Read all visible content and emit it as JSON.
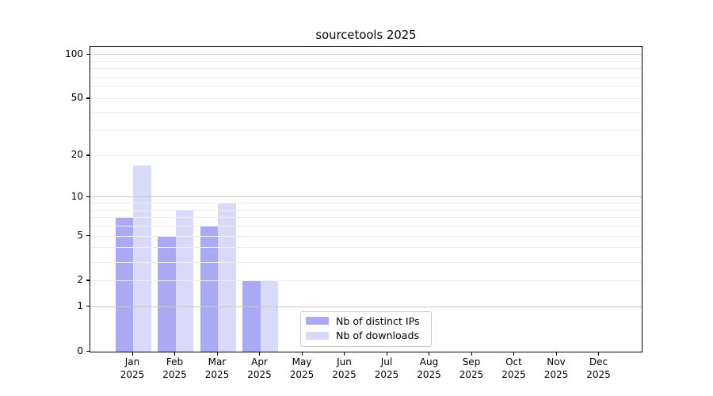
{
  "title": "sourcetools 2025",
  "chart_data": {
    "type": "bar",
    "title": "sourcetools 2025",
    "categories": [
      "Jan 2025",
      "Feb 2025",
      "Mar 2025",
      "Apr 2025",
      "May 2025",
      "Jun 2025",
      "Jul 2025",
      "Aug 2025",
      "Sep 2025",
      "Oct 2025",
      "Nov 2025",
      "Dec 2025"
    ],
    "x_tick_month_line": [
      "Jan",
      "Feb",
      "Mar",
      "Apr",
      "May",
      "Jun",
      "Jul",
      "Aug",
      "Sep",
      "Oct",
      "Nov",
      "Dec"
    ],
    "x_tick_year_line": "2025",
    "series": [
      {
        "name": "Nb of distinct IPs",
        "color": "#a9a9f4",
        "values": [
          7,
          5,
          6,
          2,
          0,
          0,
          0,
          0,
          0,
          0,
          0,
          0
        ]
      },
      {
        "name": "Nb of downloads",
        "color": "#d9d9f8",
        "values": [
          17,
          8,
          9,
          2,
          0,
          0,
          0,
          0,
          0,
          0,
          0,
          0
        ]
      }
    ],
    "y_axis": {
      "tick_labels": [
        "0",
        "1",
        "2",
        "5",
        "10",
        "20",
        "50",
        "100"
      ],
      "tick_values": [
        0,
        1,
        2,
        5,
        10,
        20,
        50,
        100
      ],
      "scale": "log10(1+x)",
      "range": [
        0,
        113
      ]
    },
    "grid": {
      "orientation": "horizontal",
      "major_values": [
        1,
        10,
        100
      ],
      "minor_values": [
        2,
        3,
        4,
        5,
        6,
        7,
        8,
        9,
        20,
        30,
        40,
        50,
        60,
        70,
        80,
        90
      ],
      "major_color": "#c9c9c9",
      "minor_color": "#ededed",
      "drawn_above_bars": true
    },
    "legend": {
      "entries": [
        "Nb of distinct IPs",
        "Nb of downloads"
      ],
      "position": "inside lower-left-center"
    },
    "spine_color": "#000000",
    "background_color": "#ffffff"
  }
}
